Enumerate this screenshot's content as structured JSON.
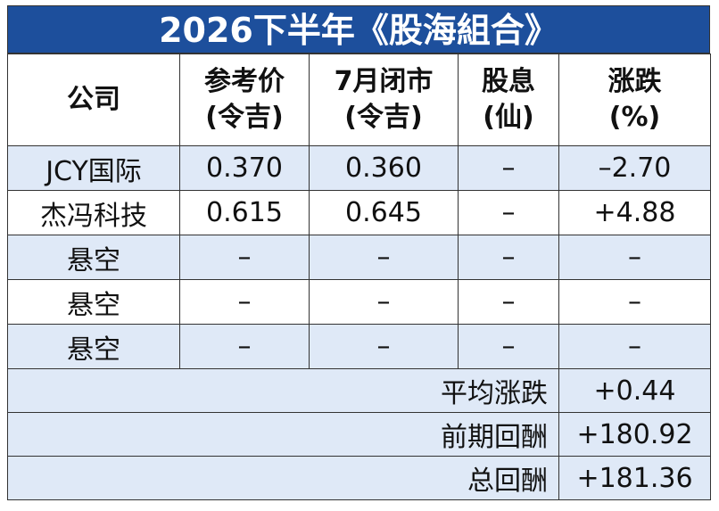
{
  "title": "2026下半年《股海組合》",
  "header": [
    [
      "公司"
    ],
    [
      "参考价",
      "(令吉)"
    ],
    [
      "7月闭市",
      "(令吉)"
    ],
    [
      "股息",
      "(仙)"
    ],
    [
      "涨跌",
      "(%)"
    ]
  ],
  "rows": [
    [
      "JCY国际",
      "0.370",
      "0.360",
      "–",
      "–2.70"
    ],
    [
      "杰冯科技",
      "0.615",
      "0.645",
      "–",
      "+4.88"
    ],
    [
      "悬空",
      "–",
      "–",
      "–",
      "–"
    ],
    [
      "悬空",
      "–",
      "–",
      "–",
      "–"
    ],
    [
      "悬空",
      "–",
      "–",
      "–",
      "–"
    ]
  ],
  "summary": [
    {
      "label": "平均涨跌",
      "value": "+0.44"
    },
    {
      "label": "前期回酬",
      "value": "+180.92"
    },
    {
      "label": "总回酬",
      "value": "+181.36"
    }
  ]
}
